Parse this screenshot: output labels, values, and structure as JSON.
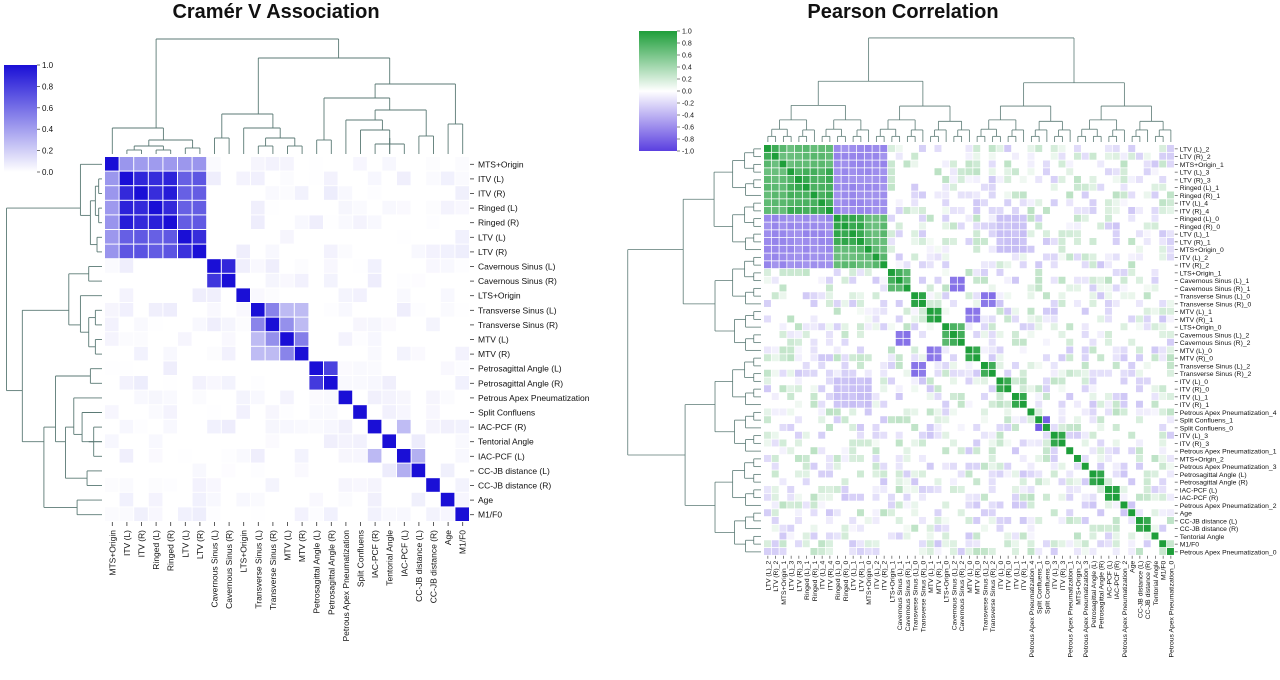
{
  "chart_data": [
    {
      "type": "heatmap",
      "title": "Cramér V Association",
      "colorbar": {
        "ticks": [
          0.0,
          0.2,
          0.4,
          0.6,
          0.8,
          1.0
        ],
        "range": [
          0.0,
          1.0
        ],
        "low_color": "#ffffff",
        "high_color": "#1a0fd6"
      },
      "dendrogram": "top and left",
      "labels": [
        "MTS+Origin",
        "ITV (L)",
        "ITV (R)",
        "Ringed (L)",
        "Ringed (R)",
        "LTV (L)",
        "LTV (R)",
        "Cavernous Sinus (L)",
        "Cavernous Sinus (R)",
        "LTS+Origin",
        "Transverse  Sinus (L)",
        "Transverse Sinus (R)",
        "MTV (L)",
        "MTV (R)",
        "Petrosagittal Angle (L)",
        "Petrosagittal Angle (R)",
        "Petrous Apex Pneumatization",
        "Split Confluens",
        "IAC-PCF (R)",
        "Tentorial Angle",
        "IAC-PCF (L)",
        "CC-JB distance (L)",
        "CC-JB distance (R)",
        "Age",
        "M1/F0"
      ],
      "blocks": [
        {
          "members": [
            1,
            2,
            3,
            4
          ],
          "value": 0.95
        },
        {
          "members": [
            5,
            6
          ],
          "value": 0.9
        },
        {
          "members": [
            1,
            2,
            3,
            4,
            5,
            6
          ],
          "value": 0.72
        },
        {
          "members": [
            0,
            1,
            2,
            3,
            4,
            5,
            6
          ],
          "value": 0.45
        },
        {
          "members": [
            7,
            8
          ],
          "value": 0.9
        },
        {
          "members": [
            10,
            11,
            12,
            13
          ],
          "value": 0.3
        },
        {
          "members": [
            10,
            11
          ],
          "value": 0.55
        },
        {
          "members": [
            12,
            13
          ],
          "value": 0.55
        },
        {
          "members": [
            11,
            12
          ],
          "value": 0.5
        },
        {
          "members": [
            14,
            15
          ],
          "value": 0.85
        },
        {
          "members": [
            20,
            21
          ],
          "value": 0.35
        },
        {
          "members": [
            18,
            20
          ],
          "value": 0.3
        }
      ]
    },
    {
      "type": "heatmap",
      "title": "Pearson Correlation",
      "colorbar": {
        "ticks": [
          1.0,
          0.8,
          0.6,
          0.4,
          0.2,
          0.0,
          -0.2,
          -0.4,
          -0.6,
          -0.8,
          -1.0
        ],
        "range": [
          -1.0,
          1.0
        ],
        "high_color": "#1e9e3a",
        "low_color": "#5a3fe0"
      },
      "dendrogram": "top and left",
      "labels": [
        "LTV (L)_2",
        "LTV (R)_2",
        "MTS+Origin_1",
        "LTV (L)_3",
        "LTV (R)_3",
        "Ringed (L)_1",
        "Ringed (R)_1",
        "ITV (L)_4",
        "ITV (R)_4",
        "Ringed (L)_0",
        "Ringed (R)_0",
        "LTV (L)_1",
        "LTV (R)_1",
        "MTS+Origin_0",
        "ITV (L)_2",
        "ITV (R)_2",
        "LTS+Origin_1",
        "Cavernous Sinus (L)_1",
        "Cavernous Sinus (R)_1",
        "Transverse  Sinus (L)_0",
        "Transverse Sinus (R)_0",
        "MTV (L)_1",
        "MTV (R)_1",
        "LTS+Origin_0",
        "Cavernous Sinus (L)_2",
        "Cavernous Sinus (R)_2",
        "MTV (L)_0",
        "MTV (R)_0",
        "Transverse  Sinus (L)_2",
        "Transverse Sinus (R)_2",
        "ITV (L)_0",
        "ITV (R)_0",
        "ITV (L)_1",
        "ITV (R)_1",
        "Petrous Apex Pneumatization_4",
        "Split Confluens_1",
        "Split Confluens_0",
        "ITV (L)_3",
        "ITV (R)_3",
        "Petrous Apex Pneumatization_1",
        "MTS+Origin_2",
        "Petrous Apex Pneumatization_3",
        "Petrosagittal Angle (L)",
        "Petrosagittal Angle (R)",
        "IAC-PCF (L)",
        "IAC-PCF (R)",
        "Petrous Apex Pneumatization_2",
        "Age",
        "CC-JB distance (L)",
        "CC-JB distance (R)",
        "Tentorial Angle",
        "M1/F0",
        "Petrous Apex Pneumatization_0"
      ]
    }
  ]
}
